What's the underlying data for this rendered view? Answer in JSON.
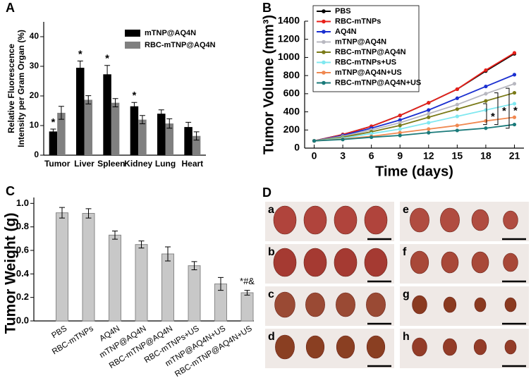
{
  "panel_labels": [
    "A",
    "B",
    "C",
    "D"
  ],
  "chart_data": [
    {
      "type": "bar",
      "y_label": [
        "Relative Fluorescence",
        "Intensity per Gram Organ (%)"
      ],
      "categories": [
        "Tumor",
        "Liver",
        "Spleen",
        "Kidney",
        "Lung",
        "Heart"
      ],
      "series": [
        {
          "name": "mTNP@AQ4N",
          "color": "#000000",
          "values": [
            8,
            29.5,
            27.3,
            16.5,
            14,
            9.5
          ],
          "errors": [
            0.8,
            2.3,
            3,
            1.3,
            1.3,
            1.6
          ],
          "significance": [
            "*",
            "*",
            "*",
            "*",
            null,
            null
          ]
        },
        {
          "name": "RBC-mTNP@AQ4N",
          "color": "#808080",
          "values": [
            14.3,
            18.7,
            17.7,
            12,
            10.7,
            6.5
          ],
          "errors": [
            2.2,
            1.4,
            1.4,
            1.4,
            1.6,
            1.4
          ]
        }
      ],
      "ylim": [
        0,
        45
      ],
      "yticks": [
        0,
        10,
        20,
        30,
        40
      ],
      "legend": "upper right"
    },
    {
      "type": "line",
      "x_label": "Time (days)",
      "y_label": "Tumor Volume (mm³)",
      "x": [
        0,
        3,
        6,
        9,
        12,
        15,
        18,
        21
      ],
      "series": [
        {
          "name": "PBS",
          "color": "#000000",
          "values": [
            80,
            150,
            240,
            360,
            500,
            650,
            850,
            1040
          ]
        },
        {
          "name": "RBC-mTNPs",
          "color": "#e8201a",
          "values": [
            80,
            150,
            240,
            360,
            500,
            650,
            860,
            1050
          ]
        },
        {
          "name": "AQ4N",
          "color": "#1a2fd0",
          "values": [
            80,
            140,
            220,
            310,
            420,
            550,
            680,
            810
          ]
        },
        {
          "name": "mTNP@AQ4N",
          "color": "#b8b8c0",
          "values": [
            80,
            130,
            200,
            280,
            380,
            480,
            600,
            710
          ]
        },
        {
          "name": "RBC-mTNP@AQ4N",
          "color": "#7a7a18",
          "values": [
            80,
            120,
            180,
            250,
            340,
            430,
            520,
            610
          ]
        },
        {
          "name": "RBC-mTNPs+US",
          "color": "#80e8f0",
          "values": [
            80,
            110,
            160,
            210,
            280,
            350,
            420,
            490
          ]
        },
        {
          "name": "mTNP@AQ4N+US",
          "color": "#f08850",
          "values": [
            80,
            100,
            130,
            170,
            210,
            250,
            300,
            340
          ]
        },
        {
          "name": "RBC-mTNP@AQ4N+US",
          "color": "#1a7a7a",
          "values": [
            80,
            95,
            120,
            140,
            170,
            195,
            220,
            260
          ]
        }
      ],
      "xlim": [
        -1,
        22
      ],
      "xticks": [
        0,
        3,
        6,
        9,
        12,
        15,
        18,
        21
      ],
      "ylim": [
        0,
        1400
      ],
      "yticks": [
        0,
        200,
        400,
        600,
        800,
        1000,
        1200,
        1400
      ],
      "annotations": [
        "*",
        "*",
        "*"
      ],
      "legend": "upper left"
    },
    {
      "type": "bar",
      "y_label": "Tumor Weight (g)",
      "categories": [
        "PBS",
        "RBC-mTNPs",
        "AQ4N",
        "mTNP@AQ4N",
        "RBC-mTNP@AQ4N",
        "RBC-mTNPs+US",
        "mTNP@AQ4N+US",
        "RBC-mTNP@AQ4N+US"
      ],
      "values": [
        0.92,
        0.915,
        0.73,
        0.65,
        0.57,
        0.47,
        0.315,
        0.24
      ],
      "errors": [
        0.045,
        0.04,
        0.035,
        0.03,
        0.06,
        0.035,
        0.055,
        0.02
      ],
      "value_notes": [
        null,
        null,
        null,
        null,
        null,
        null,
        null,
        "*#&"
      ],
      "color": "#c8c8c8",
      "ylim": [
        0,
        1.05
      ],
      "yticks": [
        {
          "value": 0,
          "label": "0.0"
        },
        {
          "value": 0.2,
          "label": "0.2"
        },
        {
          "value": 0.4,
          "label": "0.4"
        },
        {
          "value": 0.6,
          "label": "0.6"
        },
        {
          "value": 0.8,
          "label": "0.8"
        },
        {
          "value": 1,
          "label": "1.0"
        }
      ]
    }
  ],
  "photo_panel": {
    "labels": [
      "a",
      "b",
      "c",
      "d",
      "e",
      "f",
      "g",
      "h"
    ]
  }
}
